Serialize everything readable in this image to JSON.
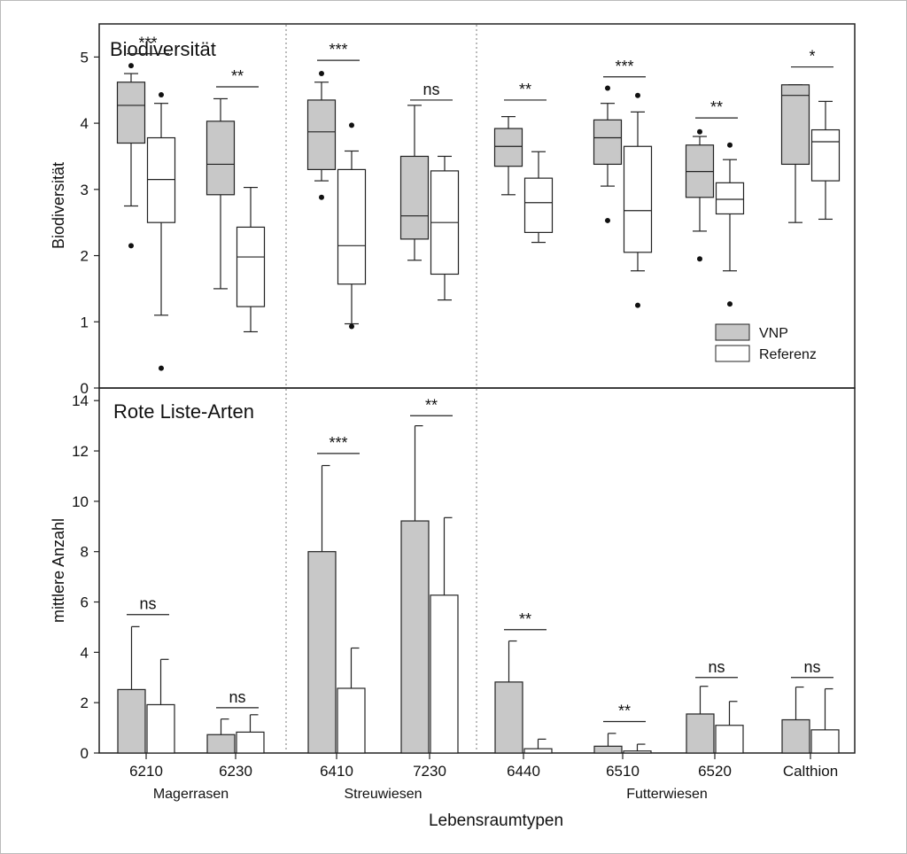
{
  "colors": {
    "vnp": "#c8c8c8",
    "referenz": "#ffffff",
    "stroke": "#222222"
  },
  "xlabel": "Lebensraumtypen",
  "categories": [
    "6210",
    "6230",
    "6410",
    "7230",
    "6440",
    "6510",
    "6520",
    "Calthion"
  ],
  "groups": [
    {
      "label": "Magerrasen",
      "from": 0,
      "to": 1
    },
    {
      "label": "Streuwiesen",
      "from": 2,
      "to": 3
    },
    {
      "label": "Futterwiesen",
      "from": 4,
      "to": 7
    }
  ],
  "group_separators_after": [
    1,
    3
  ],
  "chart_data": [
    {
      "type": "box",
      "title": "Biodiversität",
      "ylabel": "Biodiversität",
      "ylim": [
        0,
        5.5
      ],
      "yticks": [
        0,
        1,
        2,
        3,
        4,
        5
      ],
      "legend": {
        "position": "bottom-right",
        "entries": [
          "VNP",
          "Referenz"
        ]
      },
      "series": [
        {
          "name": "VNP",
          "boxes": [
            {
              "whisker_low": 2.75,
              "q1": 3.7,
              "median": 4.27,
              "q3": 4.62,
              "whisker_high": 4.75,
              "outliers": [
                4.87,
                2.15
              ]
            },
            {
              "whisker_low": 1.5,
              "q1": 2.92,
              "median": 3.38,
              "q3": 4.03,
              "whisker_high": 4.37,
              "outliers": []
            },
            {
              "whisker_low": 3.13,
              "q1": 3.3,
              "median": 3.87,
              "q3": 4.35,
              "whisker_high": 4.62,
              "outliers": [
                4.75,
                2.88
              ]
            },
            {
              "whisker_low": 1.93,
              "q1": 2.25,
              "median": 2.6,
              "q3": 3.5,
              "whisker_high": 4.27,
              "outliers": []
            },
            {
              "whisker_low": 2.92,
              "q1": 3.35,
              "median": 3.65,
              "q3": 3.92,
              "whisker_high": 4.1,
              "outliers": []
            },
            {
              "whisker_low": 3.05,
              "q1": 3.38,
              "median": 3.78,
              "q3": 4.05,
              "whisker_high": 4.3,
              "outliers": [
                4.53,
                2.53
              ]
            },
            {
              "whisker_low": 2.37,
              "q1": 2.88,
              "median": 3.27,
              "q3": 3.67,
              "whisker_high": 3.8,
              "outliers": [
                3.87,
                1.95
              ]
            },
            {
              "whisker_low": 2.5,
              "q1": 3.38,
              "median": 4.42,
              "q3": 4.58,
              "whisker_high": 4.58,
              "outliers": []
            }
          ]
        },
        {
          "name": "Referenz",
          "boxes": [
            {
              "whisker_low": 1.1,
              "q1": 2.5,
              "median": 3.15,
              "q3": 3.78,
              "whisker_high": 4.3,
              "outliers": [
                4.43,
                0.3
              ]
            },
            {
              "whisker_low": 0.85,
              "q1": 1.23,
              "median": 1.98,
              "q3": 2.43,
              "whisker_high": 3.03,
              "outliers": []
            },
            {
              "whisker_low": 0.97,
              "q1": 1.57,
              "median": 2.15,
              "q3": 3.3,
              "whisker_high": 3.58,
              "outliers": [
                3.97,
                0.93
              ]
            },
            {
              "whisker_low": 1.33,
              "q1": 1.72,
              "median": 2.5,
              "q3": 3.28,
              "whisker_high": 3.5,
              "outliers": []
            },
            {
              "whisker_low": 2.2,
              "q1": 2.35,
              "median": 2.8,
              "q3": 3.17,
              "whisker_high": 3.57,
              "outliers": []
            },
            {
              "whisker_low": 1.77,
              "q1": 2.05,
              "median": 2.68,
              "q3": 3.65,
              "whisker_high": 4.17,
              "outliers": [
                4.42,
                1.25
              ]
            },
            {
              "whisker_low": 1.77,
              "q1": 2.63,
              "median": 2.85,
              "q3": 3.1,
              "whisker_high": 3.45,
              "outliers": [
                3.67,
                1.27
              ]
            },
            {
              "whisker_low": 2.55,
              "q1": 3.13,
              "median": 3.72,
              "q3": 3.9,
              "whisker_high": 4.33,
              "outliers": []
            }
          ]
        }
      ],
      "significance": [
        {
          "label": "***",
          "y": 5.05
        },
        {
          "label": "**",
          "y": 4.55
        },
        {
          "label": "***",
          "y": 4.95
        },
        {
          "label": "ns",
          "y": 4.35
        },
        {
          "label": "**",
          "y": 4.35
        },
        {
          "label": "***",
          "y": 4.7
        },
        {
          "label": "**",
          "y": 4.08
        },
        {
          "label": "*",
          "y": 4.85
        }
      ]
    },
    {
      "type": "bar",
      "title": "Rote Liste-Arten",
      "ylabel": "mittlere Anzahl",
      "ylim": [
        0,
        14.5
      ],
      "yticks": [
        0,
        2,
        4,
        6,
        8,
        10,
        12,
        14
      ],
      "series": [
        {
          "name": "VNP",
          "values": [
            2.52,
            0.73,
            8.0,
            9.22,
            2.82,
            0.27,
            1.55,
            1.32
          ],
          "errors": [
            5.02,
            1.35,
            11.42,
            13.0,
            4.45,
            0.78,
            2.65,
            2.62
          ]
        },
        {
          "name": "Referenz",
          "values": [
            1.92,
            0.83,
            2.57,
            6.27,
            0.17,
            0.08,
            1.1,
            0.92
          ],
          "errors": [
            3.72,
            1.52,
            4.17,
            9.35,
            0.55,
            0.35,
            2.05,
            2.55
          ]
        }
      ],
      "significance": [
        {
          "label": "ns",
          "y": 5.5
        },
        {
          "label": "ns",
          "y": 1.8
        },
        {
          "label": "***",
          "y": 11.9
        },
        {
          "label": "**",
          "y": 13.4
        },
        {
          "label": "**",
          "y": 4.9
        },
        {
          "label": "**",
          "y": 1.25
        },
        {
          "label": "ns",
          "y": 3.0
        },
        {
          "label": "ns",
          "y": 3.0
        }
      ]
    }
  ]
}
